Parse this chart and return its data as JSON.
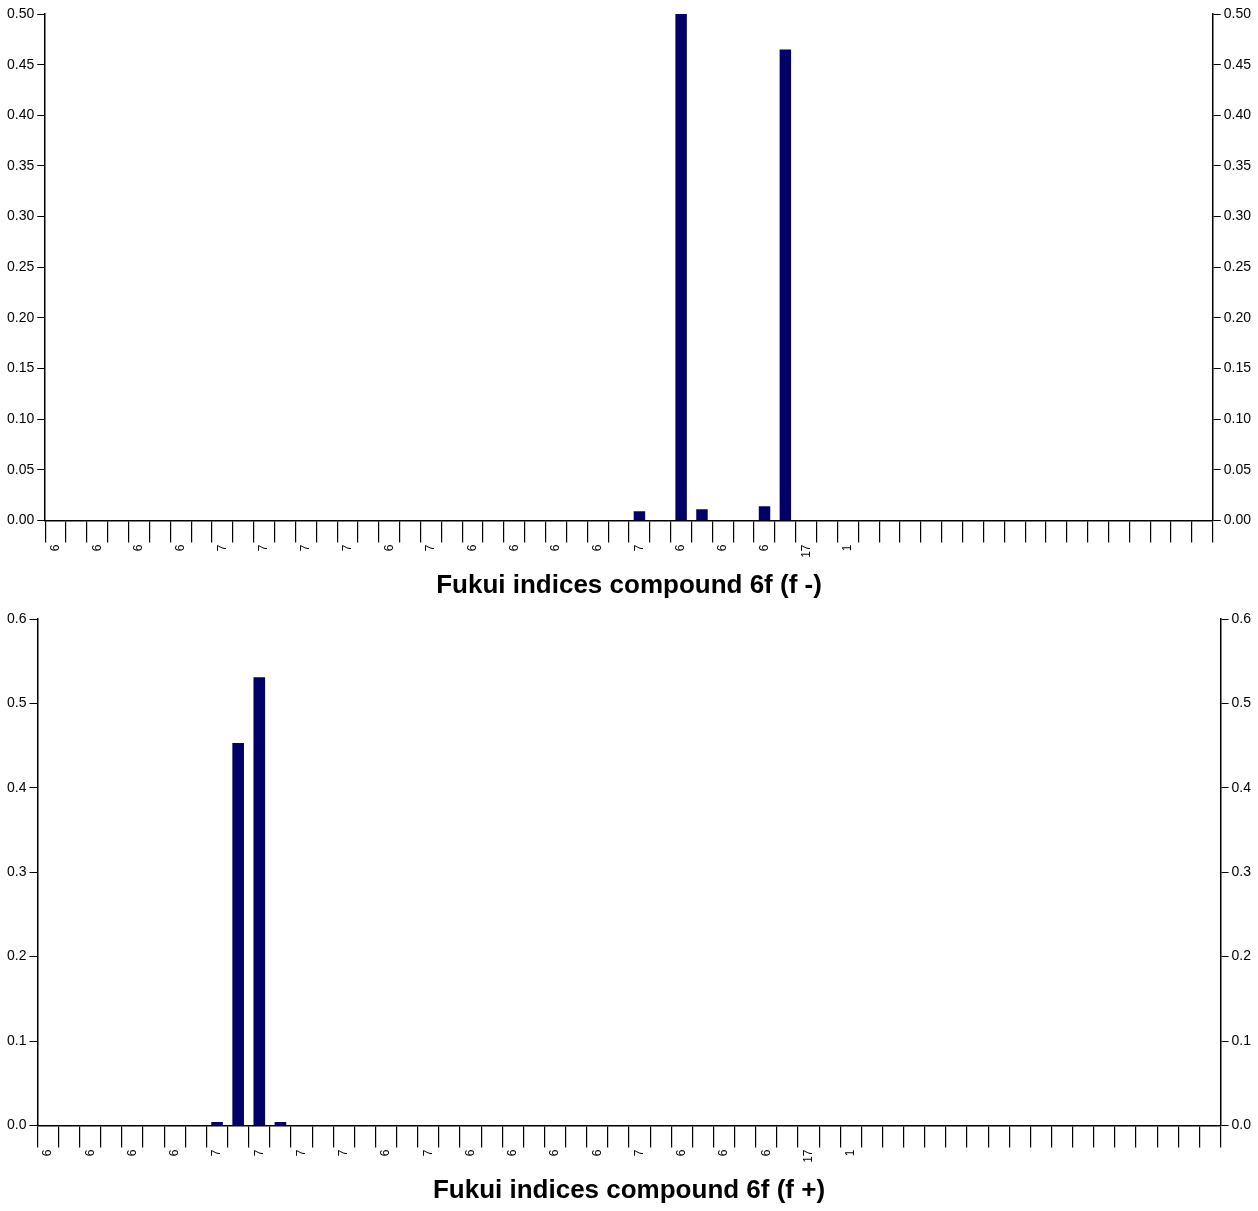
{
  "chart_data": [
    {
      "type": "bar",
      "xlabel": "Fukui indices compound 6f (f -)",
      "color": "#000066",
      "grid": false,
      "legend": false,
      "categories": [
        "6",
        null,
        "6",
        null,
        "6",
        null,
        "6",
        null,
        "7",
        null,
        "7",
        null,
        "7",
        null,
        "7",
        null,
        "6",
        null,
        "7",
        null,
        "6",
        null,
        "6",
        null,
        "6",
        null,
        "6",
        null,
        "7",
        null,
        "6",
        null,
        "6",
        null,
        "6",
        null,
        "17",
        null,
        "1",
        null,
        null,
        null,
        null,
        null,
        null,
        null,
        null,
        null,
        null,
        null,
        null,
        null,
        null,
        null,
        null,
        null
      ],
      "values": [
        0,
        0,
        0,
        0,
        0,
        0,
        0,
        0,
        0,
        0,
        0,
        0,
        0,
        0,
        0,
        0,
        0,
        0,
        0,
        0,
        0,
        0,
        0,
        0,
        0,
        0,
        0,
        0,
        0.009,
        0,
        0.5,
        0.011,
        0,
        0,
        0.014,
        0.465,
        0,
        0,
        0,
        0,
        0,
        0,
        0,
        0,
        0,
        0,
        0,
        0,
        0,
        0,
        0,
        0,
        0,
        0,
        0,
        0
      ],
      "ylim": [
        0,
        0.5
      ],
      "yticks": [
        {
          "value": 0,
          "label": "0.00"
        },
        {
          "value": 0.05,
          "label": "0.05"
        },
        {
          "value": 0.1,
          "label": "0.10"
        },
        {
          "value": 0.15,
          "label": "0.15"
        },
        {
          "value": 0.2,
          "label": "0.20"
        },
        {
          "value": 0.25,
          "label": "0.25"
        },
        {
          "value": 0.3,
          "label": "0.30"
        },
        {
          "value": 0.35,
          "label": "0.35"
        },
        {
          "value": 0.4,
          "label": "0.40"
        },
        {
          "value": 0.45,
          "label": "0.45"
        },
        {
          "value": 0.5,
          "label": "0.50"
        }
      ],
      "y2lim": [
        0,
        0.5
      ],
      "y2ticks": [
        {
          "value": 0,
          "label": "0.00"
        },
        {
          "value": 0.05,
          "label": "0.05"
        },
        {
          "value": 0.1,
          "label": "0.10"
        },
        {
          "value": 0.15,
          "label": "0.15"
        },
        {
          "value": 0.2,
          "label": "0.20"
        },
        {
          "value": 0.25,
          "label": "0.25"
        },
        {
          "value": 0.3,
          "label": "0.30"
        },
        {
          "value": 0.35,
          "label": "0.35"
        },
        {
          "value": 0.4,
          "label": "0.40"
        },
        {
          "value": 0.45,
          "label": "0.45"
        },
        {
          "value": 0.5,
          "label": "0.50"
        }
      ]
    },
    {
      "type": "bar",
      "xlabel": "Fukui indices compound 6f (f +)",
      "color": "#000066",
      "grid": false,
      "legend": false,
      "categories": [
        "6",
        null,
        "6",
        null,
        "6",
        null,
        "6",
        null,
        "7",
        null,
        "7",
        null,
        "7",
        null,
        "7",
        null,
        "6",
        null,
        "7",
        null,
        "6",
        null,
        "6",
        null,
        "6",
        null,
        "6",
        null,
        "7",
        null,
        "6",
        null,
        "6",
        null,
        "6",
        null,
        "17",
        null,
        "1",
        null,
        null,
        null,
        null,
        null,
        null,
        null,
        null,
        null,
        null,
        null,
        null,
        null,
        null,
        null,
        null,
        null
      ],
      "values": [
        0,
        0,
        0,
        0,
        0,
        0,
        0,
        0,
        0.004,
        0.453,
        0.531,
        0.004,
        0,
        0,
        0,
        0,
        0,
        0,
        0,
        0,
        0,
        0,
        0,
        0,
        0,
        0,
        0,
        0,
        0,
        0,
        0,
        0,
        0,
        0,
        0,
        0,
        0,
        0,
        0,
        0,
        0,
        0,
        0,
        0,
        0,
        0,
        0,
        0,
        0,
        0,
        0,
        0,
        0,
        0,
        0,
        0
      ],
      "ylim": [
        0,
        0.6
      ],
      "yticks": [
        {
          "value": 0,
          "label": "0.0"
        },
        {
          "value": 0.1,
          "label": "0.1"
        },
        {
          "value": 0.2,
          "label": "0.2"
        },
        {
          "value": 0.3,
          "label": "0.3"
        },
        {
          "value": 0.4,
          "label": "0.4"
        },
        {
          "value": 0.5,
          "label": "0.5"
        },
        {
          "value": 0.6,
          "label": "0.6"
        }
      ],
      "y2lim": [
        0,
        0.6
      ],
      "y2ticks": [
        {
          "value": 0,
          "label": "0.0"
        },
        {
          "value": 0.1,
          "label": "0.1"
        },
        {
          "value": 0.2,
          "label": "0.2"
        },
        {
          "value": 0.3,
          "label": "0.3"
        },
        {
          "value": 0.4,
          "label": "0.4"
        },
        {
          "value": 0.5,
          "label": "0.5"
        },
        {
          "value": 0.6,
          "label": "0.6"
        }
      ]
    }
  ]
}
